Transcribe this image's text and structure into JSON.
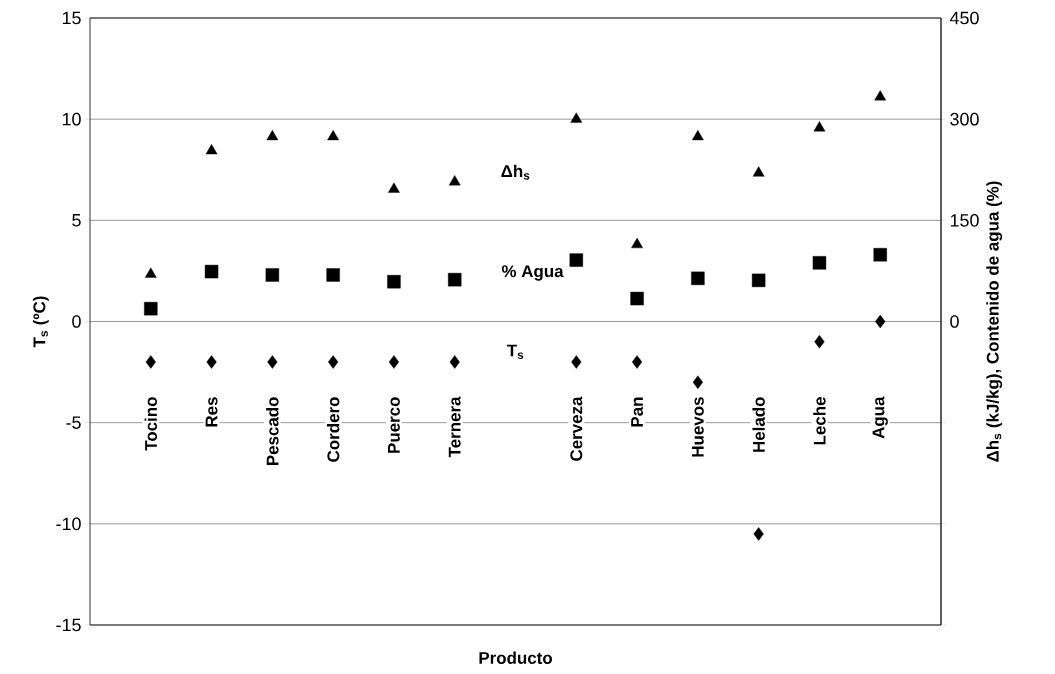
{
  "chart_data": {
    "type": "scatter",
    "xlabel": "Producto",
    "ylabel": "T$_{s}$ (ºC)",
    "y2label": "Δh$_{s}$ (kJ/kg), Contenido de agua (%)",
    "categories": [
      "Tocino",
      "Res",
      "Pescado",
      "Cordero",
      "Puerco",
      "Ternera",
      null,
      "Cerveza",
      "Pan",
      "Huevos",
      "Helado",
      "Leche",
      "Agua"
    ],
    "ylim": [
      -15,
      15
    ],
    "yticks": [
      -15,
      -10,
      -5,
      0,
      5,
      10,
      15
    ],
    "y2lim": [
      -450,
      450
    ],
    "y2ticks": [
      {
        "value": -450,
        "label": null
      },
      {
        "value": -300,
        "label": null
      },
      {
        "value": -150,
        "label": null
      },
      0,
      150,
      300,
      450
    ],
    "grid": "y",
    "series": [
      {
        "name": "Δh$_{s}$",
        "color": "#000000",
        "axis": "y2",
        "marker": "triangle",
        "values": [
          70,
          253,
          274,
          274,
          196,
          207,
          null,
          300,
          114,
          274,
          220,
          287,
          333
        ]
      },
      {
        "name": "% Agua",
        "color": "#000000",
        "axis": "y2",
        "marker": "square",
        "values": [
          19,
          74,
          69,
          69,
          59,
          62,
          null,
          91,
          34,
          64,
          61,
          87,
          99
        ]
      },
      {
        "name": "T$_{s}$",
        "color": "#000000",
        "axis": "y",
        "marker": "diamond",
        "values": [
          -2,
          -2,
          -2,
          -2,
          -2,
          -2,
          null,
          -2,
          -2,
          -3,
          -10.5,
          -1,
          0
        ]
      }
    ]
  }
}
